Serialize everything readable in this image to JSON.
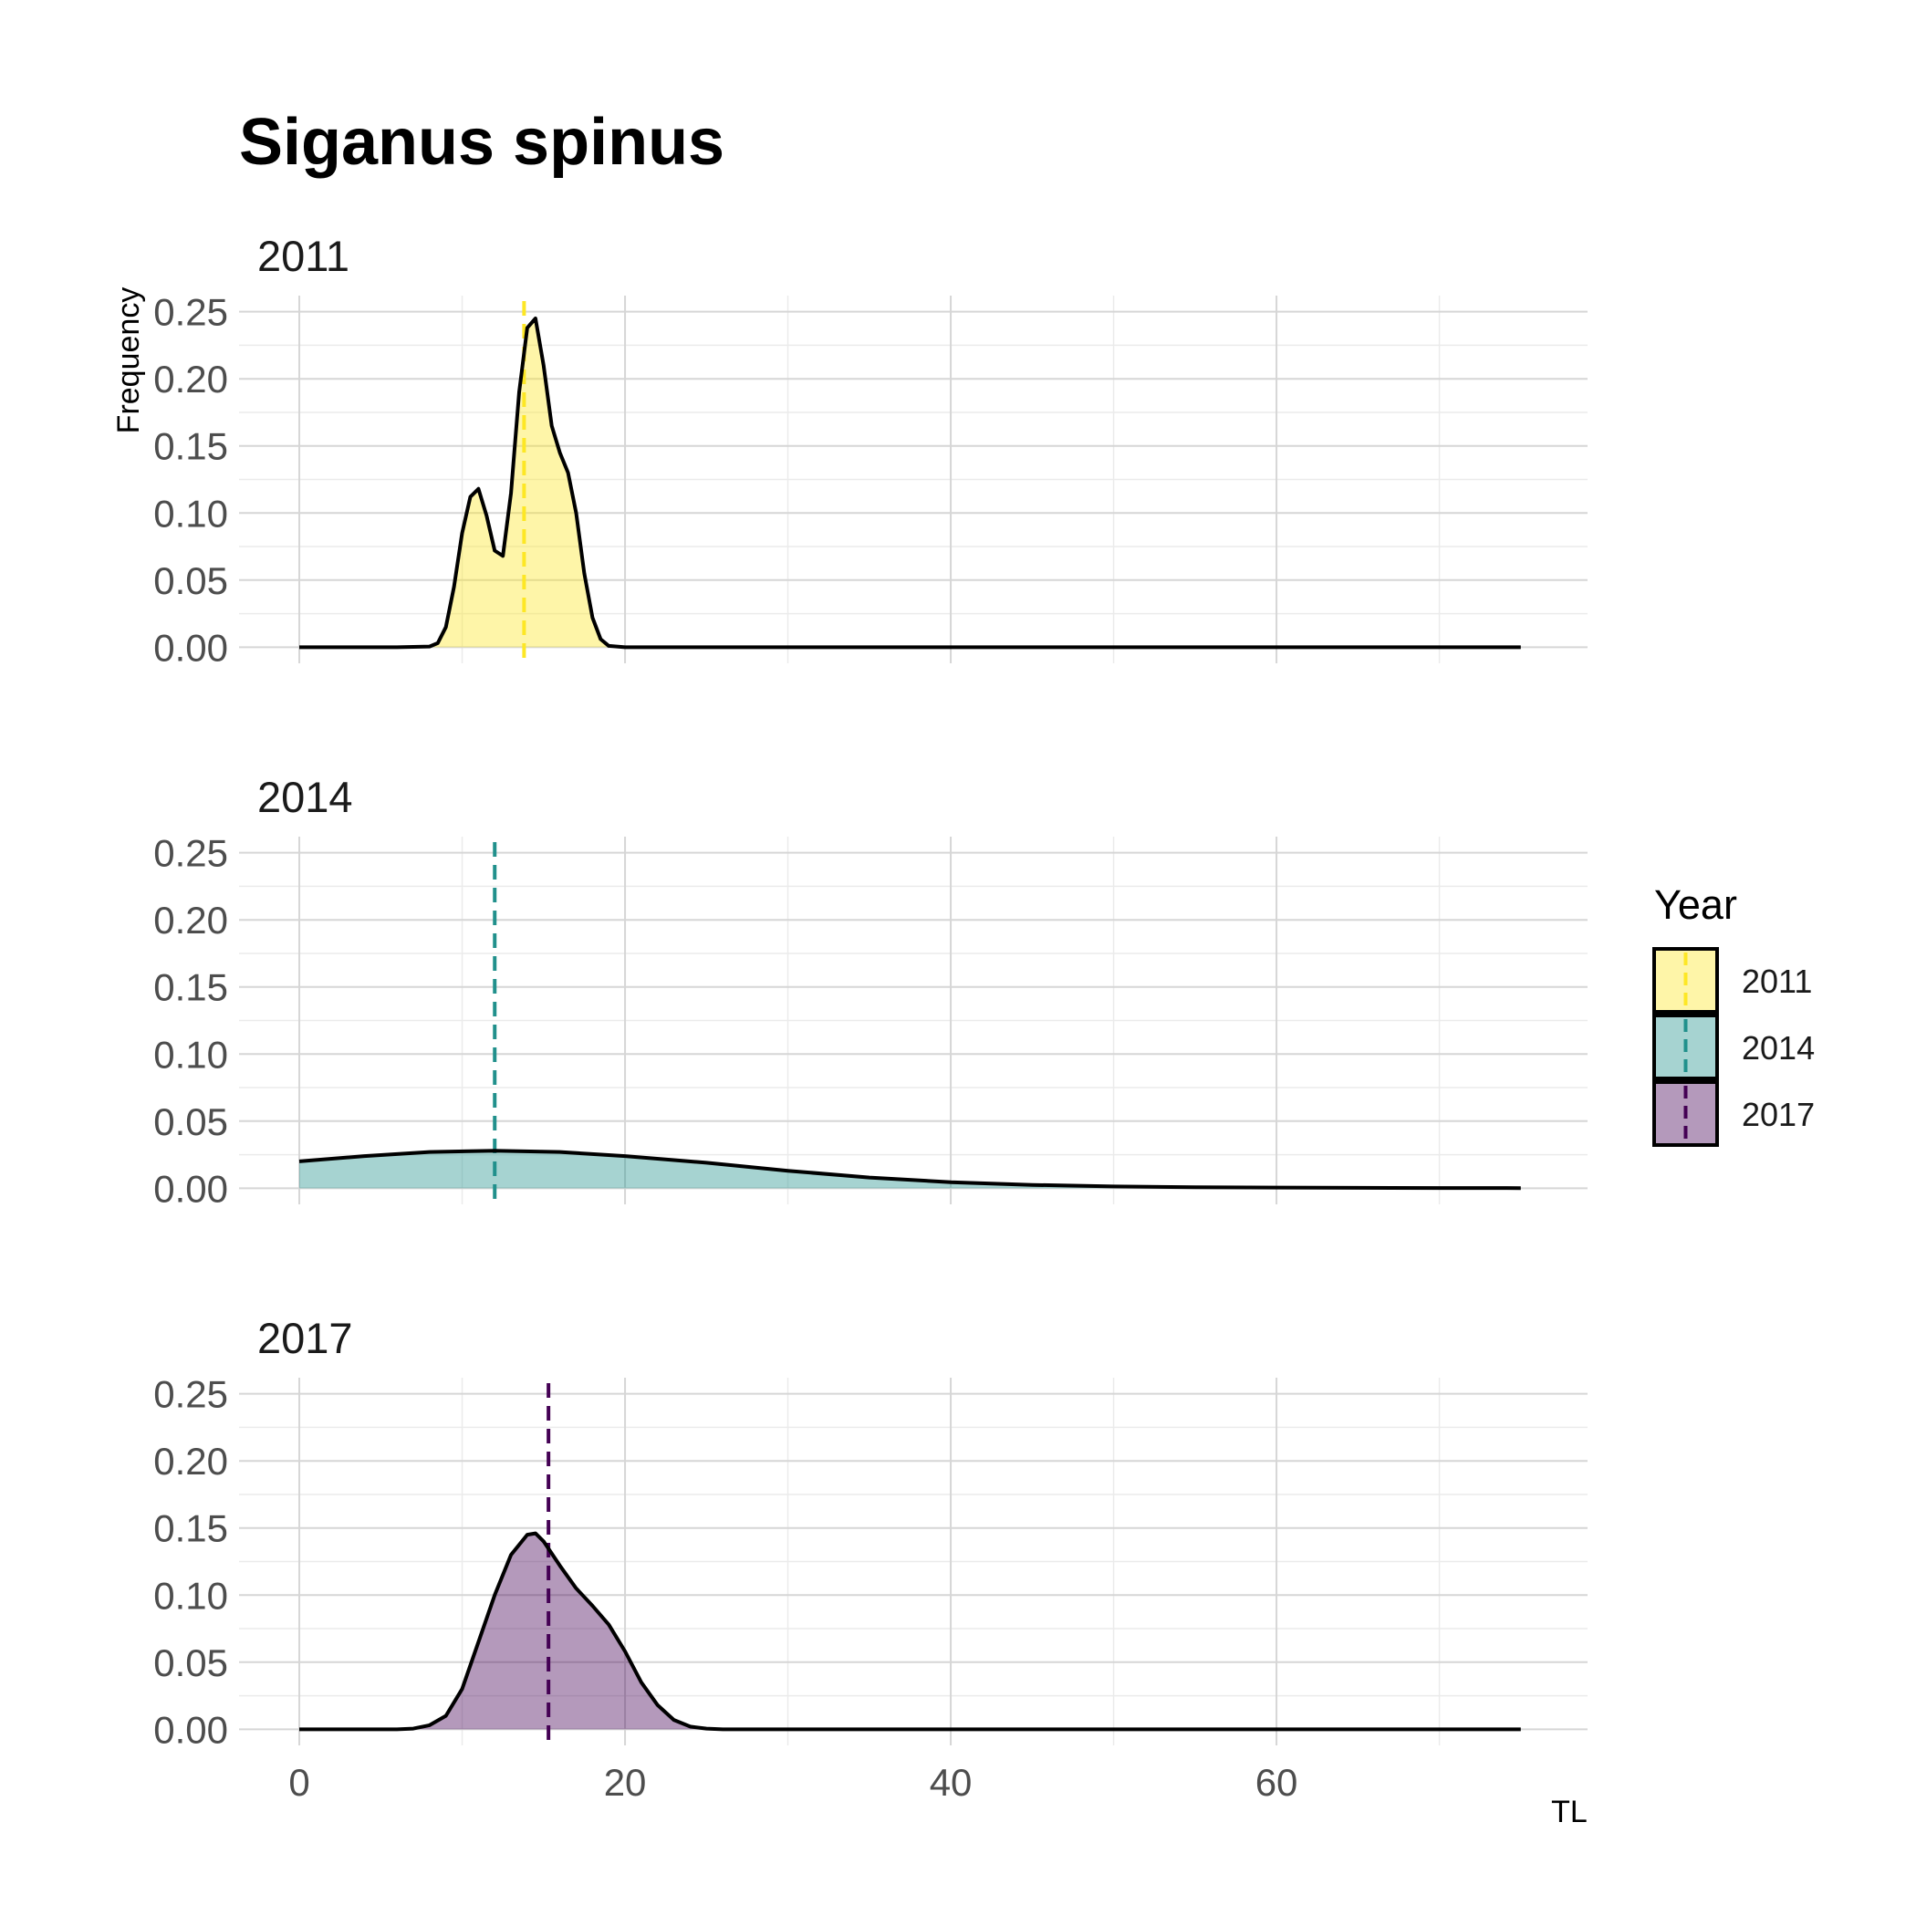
{
  "chart_data": {
    "type": "area",
    "title": "Siganus spinus",
    "xlabel": "TL",
    "ylabel": "Frequency",
    "xlim": [
      -3.7,
      79.1
    ],
    "ylim": [
      -0.012,
      0.262
    ],
    "x_ticks": [
      0,
      20,
      40,
      60
    ],
    "x_tick_labels": [
      "0",
      "20",
      "40",
      "60"
    ],
    "y_ticks": [
      0,
      0.05,
      0.1,
      0.15,
      0.2,
      0.25
    ],
    "y_tick_labels": [
      "0.00",
      "0.05",
      "0.10",
      "0.15",
      "0.20",
      "0.25"
    ],
    "grid": true,
    "legend": {
      "title": "Year",
      "position": "right",
      "entries": [
        "2011",
        "2014",
        "2017"
      ]
    },
    "panels": [
      {
        "label": "2011",
        "fill": "#FDE725",
        "line_color": "#FDE725",
        "mean_line_x": 13.8,
        "x": [
          0,
          6,
          8,
          8.5,
          9,
          9.5,
          10,
          10.5,
          11,
          11.5,
          12,
          12.5,
          13,
          13.5,
          14,
          14.5,
          15,
          15.5,
          16,
          16.5,
          17,
          17.5,
          18,
          18.5,
          19,
          20,
          25,
          75
        ],
        "y": [
          0,
          0,
          0.0005,
          0.003,
          0.015,
          0.045,
          0.085,
          0.112,
          0.118,
          0.098,
          0.072,
          0.068,
          0.115,
          0.19,
          0.238,
          0.245,
          0.21,
          0.165,
          0.145,
          0.13,
          0.1,
          0.055,
          0.022,
          0.006,
          0.001,
          0,
          0,
          0
        ]
      },
      {
        "label": "2014",
        "fill": "#21908C",
        "line_color": "#21908C",
        "mean_line_x": 12,
        "x": [
          0,
          4,
          8,
          12,
          16,
          20,
          25,
          30,
          35,
          40,
          45,
          50,
          55,
          60,
          65,
          70,
          75
        ],
        "y": [
          0.02,
          0.024,
          0.027,
          0.028,
          0.027,
          0.024,
          0.019,
          0.013,
          0.008,
          0.0045,
          0.0025,
          0.0013,
          0.0008,
          0.0005,
          0.0003,
          0.0002,
          0.0001
        ]
      },
      {
        "label": "2017",
        "fill": "#440154",
        "line_color": "#440154",
        "mean_line_x": 15.3,
        "x": [
          0,
          6,
          7,
          8,
          9,
          10,
          11,
          12,
          13,
          14,
          14.5,
          15,
          16,
          17,
          18,
          19,
          20,
          21,
          22,
          23,
          24,
          25,
          26,
          30,
          75
        ],
        "y": [
          0,
          0,
          0.0005,
          0.003,
          0.01,
          0.03,
          0.065,
          0.1,
          0.13,
          0.145,
          0.146,
          0.14,
          0.122,
          0.105,
          0.092,
          0.078,
          0.058,
          0.035,
          0.018,
          0.007,
          0.002,
          0.0005,
          0,
          0,
          0
        ]
      }
    ]
  }
}
